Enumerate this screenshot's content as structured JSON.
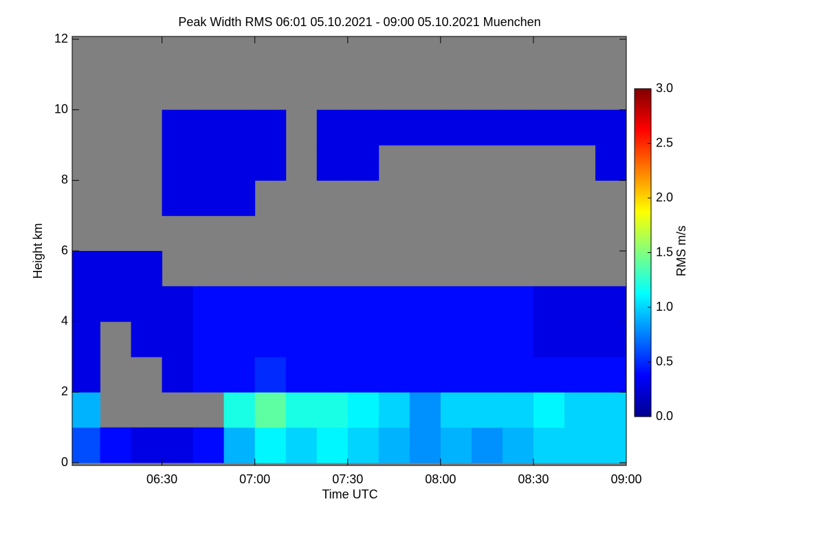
{
  "chart_data": {
    "type": "heatmap",
    "title": "Peak Width RMS   06:01 05.10.2021 - 09:00 05.10.2021 Muenchen",
    "xlabel": "Time UTC",
    "ylabel": "Height km",
    "xlim": [
      361,
      540
    ],
    "xticks": [
      {
        "value": 390,
        "label": "06:30"
      },
      {
        "value": 420,
        "label": "07:00"
      },
      {
        "value": 450,
        "label": "07:30"
      },
      {
        "value": 480,
        "label": "08:00"
      },
      {
        "value": 510,
        "label": "08:30"
      },
      {
        "value": 540,
        "label": "09:00"
      }
    ],
    "ylim": [
      0,
      12
    ],
    "yticks": [
      0,
      2,
      4,
      6,
      8,
      10,
      12
    ],
    "x_bins": [
      361,
      370,
      380,
      390,
      400,
      410,
      420,
      430,
      440,
      450,
      460,
      470,
      480,
      490,
      500,
      510,
      520,
      530,
      540
    ],
    "y_bins": [
      0,
      1,
      2,
      3,
      4,
      5,
      6,
      7,
      8,
      9,
      10,
      11,
      12
    ],
    "missing_color": "#808080",
    "values": [
      [
        0.6,
        0.4,
        0.3,
        0.3,
        0.4,
        0.9,
        1.1,
        1.0,
        1.1,
        1.0,
        0.9,
        0.8,
        0.9,
        0.8,
        0.9,
        1.0,
        1.0,
        1.0
      ],
      [
        0.9,
        null,
        null,
        null,
        null,
        1.2,
        1.4,
        1.2,
        1.2,
        1.1,
        1.0,
        0.8,
        1.0,
        1.0,
        1.0,
        1.1,
        1.0,
        1.0
      ],
      [
        0.3,
        null,
        null,
        0.3,
        0.4,
        0.4,
        0.5,
        0.4,
        0.4,
        0.4,
        0.4,
        0.4,
        0.4,
        0.4,
        0.4,
        0.4,
        0.4,
        0.4
      ],
      [
        0.3,
        null,
        0.3,
        0.3,
        0.4,
        0.4,
        0.4,
        0.4,
        0.4,
        0.4,
        0.4,
        0.4,
        0.4,
        0.4,
        0.4,
        0.3,
        0.3,
        0.3
      ],
      [
        0.3,
        0.3,
        0.3,
        0.3,
        0.4,
        0.4,
        0.4,
        0.4,
        0.4,
        0.4,
        0.4,
        0.4,
        0.4,
        0.4,
        0.4,
        0.3,
        0.3,
        0.3
      ],
      [
        0.3,
        0.3,
        0.3,
        null,
        null,
        null,
        null,
        null,
        null,
        null,
        null,
        null,
        null,
        null,
        null,
        null,
        null,
        null
      ],
      [
        null,
        null,
        null,
        null,
        null,
        null,
        null,
        null,
        null,
        null,
        null,
        null,
        null,
        null,
        null,
        null,
        null,
        null
      ],
      [
        null,
        null,
        null,
        0.3,
        0.3,
        0.3,
        null,
        null,
        null,
        null,
        null,
        null,
        null,
        null,
        null,
        null,
        null,
        null
      ],
      [
        null,
        null,
        null,
        0.3,
        0.3,
        0.3,
        0.3,
        null,
        0.3,
        0.3,
        null,
        null,
        null,
        null,
        null,
        null,
        null,
        0.3
      ],
      [
        null,
        null,
        null,
        0.3,
        0.3,
        0.3,
        0.3,
        null,
        0.3,
        0.3,
        0.3,
        0.3,
        0.3,
        0.3,
        0.3,
        0.3,
        0.3,
        0.3
      ],
      [
        null,
        null,
        null,
        null,
        null,
        null,
        null,
        null,
        null,
        null,
        null,
        null,
        null,
        null,
        null,
        null,
        null,
        null
      ],
      [
        null,
        null,
        null,
        null,
        null,
        null,
        null,
        null,
        null,
        null,
        null,
        null,
        null,
        null,
        null,
        null,
        null,
        null
      ]
    ],
    "colorbar": {
      "label": "RMS m/s",
      "colormap": "jet",
      "lim": [
        0,
        3
      ],
      "ticks": [
        {
          "value": 0,
          "label": "0.0"
        },
        {
          "value": 0.5,
          "label": "0.5"
        },
        {
          "value": 1,
          "label": "1.0"
        },
        {
          "value": 1.5,
          "label": "1.5"
        },
        {
          "value": 2,
          "label": "2.0"
        },
        {
          "value": 2.5,
          "label": "2.5"
        },
        {
          "value": 3,
          "label": "3.0"
        }
      ]
    }
  }
}
